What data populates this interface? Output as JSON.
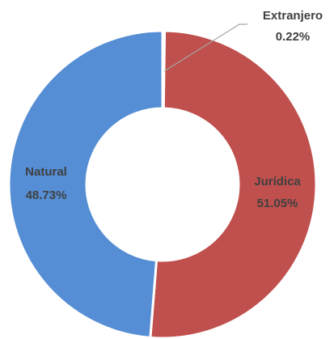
{
  "chart_data": {
    "type": "donut",
    "categories": [
      "Extranjero",
      "Jurídica",
      "Natural"
    ],
    "values": [
      0.22,
      51.05,
      48.73
    ],
    "value_labels": [
      "0.22%",
      "51.05%",
      "48.73%"
    ],
    "colors": [
      "#9bbb59",
      "#c0504d",
      "#558ed5"
    ]
  }
}
